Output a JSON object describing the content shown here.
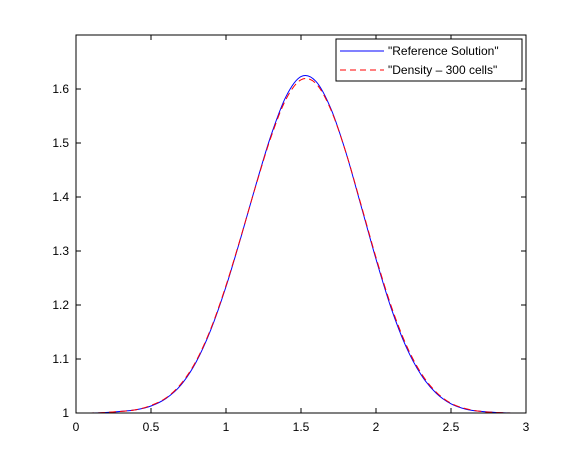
{
  "chart_data": {
    "type": "line",
    "title": "",
    "xlabel": "",
    "ylabel": "",
    "xlim": [
      0,
      3
    ],
    "ylim": [
      1,
      1.7
    ],
    "xticks": [
      0,
      0.5,
      1,
      1.5,
      2,
      2.5,
      3
    ],
    "xtick_labels": [
      "0",
      "0.5",
      "1",
      "1.5",
      "2",
      "2.5",
      "3"
    ],
    "yticks": [
      1,
      1.1,
      1.2,
      1.3,
      1.4,
      1.5,
      1.6
    ],
    "ytick_labels": [
      "1",
      "1.1",
      "1.2",
      "1.3",
      "1.4",
      "1.5",
      "1.6"
    ],
    "grid": false,
    "legend_position": "top-right",
    "legend": [
      "\"Reference Solution\"",
      "\"Density – 300 cells\""
    ],
    "series": [
      {
        "name": "\"Reference Solution\"",
        "color": "#0000ff",
        "style": "solid",
        "x": [
          0,
          0.1,
          0.2,
          0.3,
          0.4,
          0.5,
          0.6,
          0.7,
          0.8,
          0.9,
          1.0,
          1.1,
          1.2,
          1.3,
          1.4,
          1.5,
          1.6,
          1.7,
          1.8,
          1.9,
          2.0,
          2.1,
          2.2,
          2.3,
          2.4,
          2.5,
          2.6,
          2.7,
          2.8,
          2.9,
          3.0
        ],
        "y": [
          1.0,
          1.0,
          1.001,
          1.003,
          1.006,
          1.013,
          1.027,
          1.052,
          1.094,
          1.155,
          1.234,
          1.326,
          1.423,
          1.514,
          1.586,
          1.623,
          1.614,
          1.563,
          1.482,
          1.384,
          1.285,
          1.195,
          1.123,
          1.071,
          1.037,
          1.017,
          1.007,
          1.003,
          1.001,
          1.0,
          1.0
        ]
      },
      {
        "name": "\"Density – 300 cells\"",
        "color": "#ff0000",
        "style": "dashed",
        "x": [
          0,
          0.1,
          0.2,
          0.3,
          0.4,
          0.5,
          0.6,
          0.7,
          0.8,
          0.9,
          1.0,
          1.1,
          1.2,
          1.3,
          1.4,
          1.5,
          1.6,
          1.7,
          1.8,
          1.9,
          2.0,
          2.1,
          2.2,
          2.3,
          2.4,
          2.5,
          2.6,
          2.7,
          2.8,
          2.9,
          3.0
        ],
        "y": [
          1.0,
          1.0,
          1.001,
          1.003,
          1.006,
          1.014,
          1.028,
          1.054,
          1.096,
          1.157,
          1.236,
          1.327,
          1.422,
          1.511,
          1.581,
          1.617,
          1.61,
          1.561,
          1.482,
          1.386,
          1.288,
          1.199,
          1.127,
          1.074,
          1.039,
          1.018,
          1.008,
          1.003,
          1.001,
          1.0,
          1.0
        ]
      }
    ]
  }
}
